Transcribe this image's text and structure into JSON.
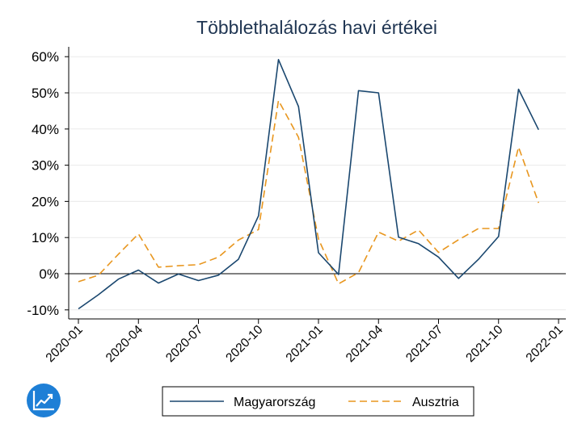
{
  "chart_data": {
    "type": "line",
    "title": "Többlethalálozás havi értékei",
    "xlabel": "",
    "ylabel": "",
    "x": [
      "2020-01",
      "2020-02",
      "2020-03",
      "2020-04",
      "2020-05",
      "2020-06",
      "2020-07",
      "2020-08",
      "2020-09",
      "2020-10",
      "2020-11",
      "2020-12",
      "2021-01",
      "2021-02",
      "2021-03",
      "2021-04",
      "2021-05",
      "2021-06",
      "2021-07",
      "2021-08",
      "2021-09",
      "2021-10",
      "2021-11",
      "2021-12"
    ],
    "xticks": [
      "2020-01",
      "2020-04",
      "2020-07",
      "2020-10",
      "2021-01",
      "2021-04",
      "2021-07",
      "2021-10",
      "2022-01"
    ],
    "yticks": [
      -10,
      0,
      10,
      20,
      30,
      40,
      50,
      60
    ],
    "ytick_labels": [
      "-10%",
      "0%",
      "10%",
      "20%",
      "30%",
      "40%",
      "50%",
      "60%"
    ],
    "ylim": [
      -12,
      63
    ],
    "xlim": [
      "2020-01",
      "2022-01"
    ],
    "grid": true,
    "legend_position": "bottom",
    "series": [
      {
        "name": "Magyarország",
        "color": "#1a476f",
        "dash": "solid",
        "values": [
          -9.7,
          -5.8,
          -1.5,
          1.0,
          -2.6,
          -0.1,
          -1.9,
          -0.4,
          4.0,
          16.0,
          59.2,
          46.2,
          5.8,
          -0.2,
          50.6,
          50.0,
          10.1,
          8.3,
          4.6,
          -1.3,
          4.0,
          10.3,
          51.0,
          39.8
        ]
      },
      {
        "name": "Ausztria",
        "color": "#e8961e",
        "dash": "dashed",
        "values": [
          -2.2,
          -0.4,
          5.4,
          11.0,
          1.8,
          2.2,
          2.5,
          4.6,
          9.3,
          12.2,
          47.9,
          37.7,
          9.6,
          -2.8,
          0.3,
          11.5,
          9.0,
          12.1,
          5.9,
          9.4,
          12.5,
          12.5,
          35.0,
          19.6
        ]
      }
    ]
  },
  "logo": {
    "icon": "trend-chart-icon",
    "color": "#1e7fd6"
  }
}
